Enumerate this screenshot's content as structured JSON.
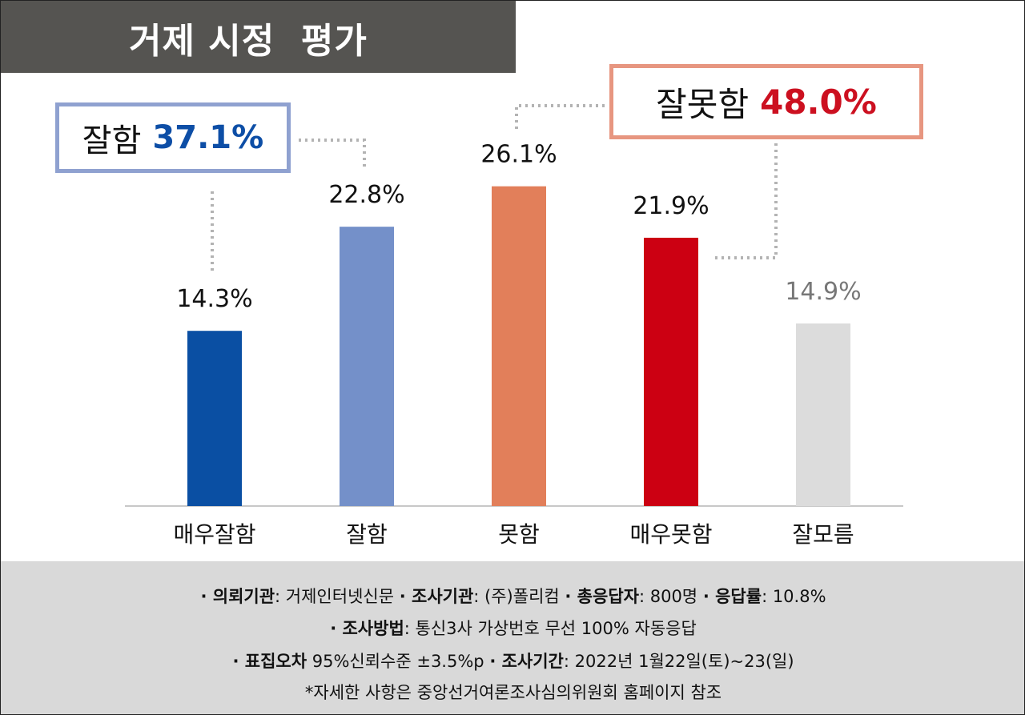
{
  "title": "거제 시정  평가",
  "callouts": {
    "good": {
      "label": "잘함",
      "value": "37.1%",
      "color": "#0d4ea6"
    },
    "bad": {
      "label": "잘못함",
      "value": "48.0%",
      "color": "#cc1020"
    }
  },
  "chart_data": {
    "type": "bar",
    "categories": [
      "매우잘함",
      "잘함",
      "못함",
      "매우못함",
      "잘모름"
    ],
    "values": [
      14.3,
      22.8,
      26.1,
      21.9,
      14.9
    ],
    "value_labels": [
      "14.3%",
      "22.8%",
      "26.1%",
      "21.9%",
      "14.9%"
    ],
    "colors": [
      "#0a4fa3",
      "#7490c9",
      "#e27f5a",
      "#cc0012",
      "#dcdcdc"
    ],
    "ylim": [
      0,
      30
    ],
    "grid": false,
    "legend": "none"
  },
  "footer": {
    "line1": [
      {
        "label": "· 의뢰기관",
        "text": ": 거제인터넷신문 "
      },
      {
        "label": "· 조사기관",
        "text": ": (주)폴리컴 "
      },
      {
        "label": "· 총응답자",
        "text": ": 800명 "
      },
      {
        "label": "· 응답률",
        "text": ": 10.8%"
      }
    ],
    "line2": [
      {
        "label": "· 조사방법",
        "text": ": 통신3사 가상번호 무선 100% 자동응답"
      }
    ],
    "line3": [
      {
        "label": "· 표집오차",
        "text": "  95%신뢰수준  ±3.5%p "
      },
      {
        "label": "· 조사기간",
        "text": ": 2022년 1월22일(토)~23(일)"
      }
    ],
    "line4": "*자세한 사항은  중앙선거여론조사심의위원회 홈페이지 참조"
  }
}
